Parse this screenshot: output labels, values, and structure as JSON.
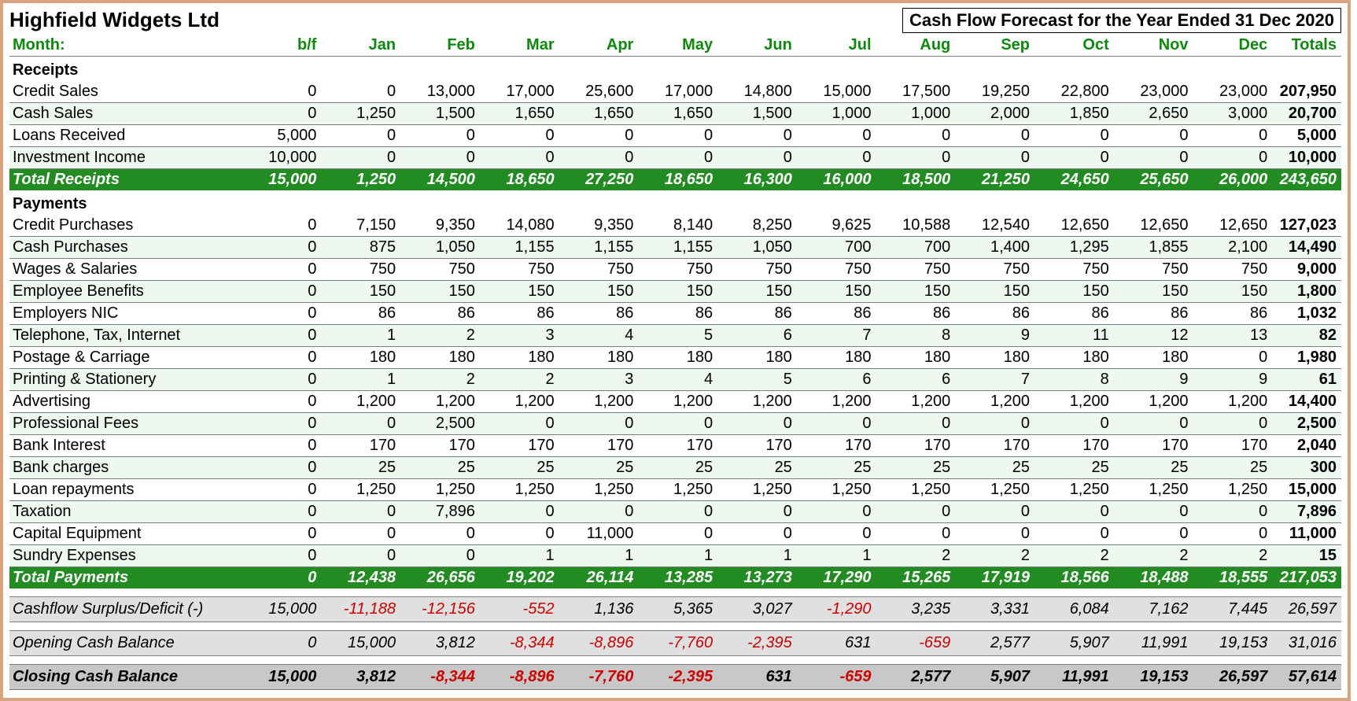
{
  "company": "Highfield Widgets Ltd",
  "title": "Cash Flow Forecast for the Year Ended 31 Dec 2020",
  "month_label": "Month:",
  "columns": [
    "b/f",
    "Jan",
    "Feb",
    "Mar",
    "Apr",
    "May",
    "Jun",
    "Jul",
    "Aug",
    "Sep",
    "Oct",
    "Nov",
    "Dec",
    "Totals"
  ],
  "receipts_header": "Receipts",
  "receipts": [
    {
      "label": "Credit Sales",
      "vals": [
        "0",
        "0",
        "13,000",
        "17,000",
        "25,600",
        "17,000",
        "14,800",
        "15,000",
        "17,500",
        "19,250",
        "22,800",
        "23,000",
        "23,000",
        "207,950"
      ]
    },
    {
      "label": "Cash Sales",
      "vals": [
        "0",
        "1,250",
        "1,500",
        "1,650",
        "1,650",
        "1,650",
        "1,500",
        "1,000",
        "1,000",
        "2,000",
        "1,850",
        "2,650",
        "3,000",
        "20,700"
      ]
    },
    {
      "label": "Loans Received",
      "vals": [
        "5,000",
        "0",
        "0",
        "0",
        "0",
        "0",
        "0",
        "0",
        "0",
        "0",
        "0",
        "0",
        "0",
        "5,000"
      ]
    },
    {
      "label": "Investment Income",
      "vals": [
        "10,000",
        "0",
        "0",
        "0",
        "0",
        "0",
        "0",
        "0",
        "0",
        "0",
        "0",
        "0",
        "0",
        "10,000"
      ]
    }
  ],
  "total_receipts_label": "Total Receipts",
  "total_receipts": [
    "15,000",
    "1,250",
    "14,500",
    "18,650",
    "27,250",
    "18,650",
    "16,300",
    "16,000",
    "18,500",
    "21,250",
    "24,650",
    "25,650",
    "26,000",
    "243,650"
  ],
  "payments_header": "Payments",
  "payments": [
    {
      "label": "Credit Purchases",
      "vals": [
        "0",
        "7,150",
        "9,350",
        "14,080",
        "9,350",
        "8,140",
        "8,250",
        "9,625",
        "10,588",
        "12,540",
        "12,650",
        "12,650",
        "12,650",
        "127,023"
      ]
    },
    {
      "label": "Cash Purchases",
      "vals": [
        "0",
        "875",
        "1,050",
        "1,155",
        "1,155",
        "1,155",
        "1,050",
        "700",
        "700",
        "1,400",
        "1,295",
        "1,855",
        "2,100",
        "14,490"
      ]
    },
    {
      "label": "Wages & Salaries",
      "vals": [
        "0",
        "750",
        "750",
        "750",
        "750",
        "750",
        "750",
        "750",
        "750",
        "750",
        "750",
        "750",
        "750",
        "9,000"
      ]
    },
    {
      "label": "Employee Benefits",
      "vals": [
        "0",
        "150",
        "150",
        "150",
        "150",
        "150",
        "150",
        "150",
        "150",
        "150",
        "150",
        "150",
        "150",
        "1,800"
      ]
    },
    {
      "label": "Employers NIC",
      "vals": [
        "0",
        "86",
        "86",
        "86",
        "86",
        "86",
        "86",
        "86",
        "86",
        "86",
        "86",
        "86",
        "86",
        "1,032"
      ]
    },
    {
      "label": "Telephone, Tax, Internet",
      "vals": [
        "0",
        "1",
        "2",
        "3",
        "4",
        "5",
        "6",
        "7",
        "8",
        "9",
        "11",
        "12",
        "13",
        "82"
      ]
    },
    {
      "label": "Postage & Carriage",
      "vals": [
        "0",
        "180",
        "180",
        "180",
        "180",
        "180",
        "180",
        "180",
        "180",
        "180",
        "180",
        "180",
        "0",
        "1,980"
      ]
    },
    {
      "label": "Printing & Stationery",
      "vals": [
        "0",
        "1",
        "2",
        "2",
        "3",
        "4",
        "5",
        "6",
        "6",
        "7",
        "8",
        "9",
        "9",
        "61"
      ]
    },
    {
      "label": "Advertising",
      "vals": [
        "0",
        "1,200",
        "1,200",
        "1,200",
        "1,200",
        "1,200",
        "1,200",
        "1,200",
        "1,200",
        "1,200",
        "1,200",
        "1,200",
        "1,200",
        "14,400"
      ]
    },
    {
      "label": "Professional Fees",
      "vals": [
        "0",
        "0",
        "2,500",
        "0",
        "0",
        "0",
        "0",
        "0",
        "0",
        "0",
        "0",
        "0",
        "0",
        "2,500"
      ]
    },
    {
      "label": "Bank Interest",
      "vals": [
        "0",
        "170",
        "170",
        "170",
        "170",
        "170",
        "170",
        "170",
        "170",
        "170",
        "170",
        "170",
        "170",
        "2,040"
      ]
    },
    {
      "label": "Bank charges",
      "vals": [
        "0",
        "25",
        "25",
        "25",
        "25",
        "25",
        "25",
        "25",
        "25",
        "25",
        "25",
        "25",
        "25",
        "300"
      ]
    },
    {
      "label": "Loan repayments",
      "vals": [
        "0",
        "1,250",
        "1,250",
        "1,250",
        "1,250",
        "1,250",
        "1,250",
        "1,250",
        "1,250",
        "1,250",
        "1,250",
        "1,250",
        "1,250",
        "15,000"
      ]
    },
    {
      "label": "Taxation",
      "vals": [
        "0",
        "0",
        "7,896",
        "0",
        "0",
        "0",
        "0",
        "0",
        "0",
        "0",
        "0",
        "0",
        "0",
        "7,896"
      ]
    },
    {
      "label": "Capital Equipment",
      "vals": [
        "0",
        "0",
        "0",
        "0",
        "11,000",
        "0",
        "0",
        "0",
        "0",
        "0",
        "0",
        "0",
        "0",
        "11,000"
      ]
    },
    {
      "label": "Sundry Expenses",
      "vals": [
        "0",
        "0",
        "0",
        "1",
        "1",
        "1",
        "1",
        "1",
        "2",
        "2",
        "2",
        "2",
        "2",
        "15"
      ]
    }
  ],
  "total_payments_label": "Total Payments",
  "total_payments": [
    "0",
    "12,438",
    "26,656",
    "19,202",
    "26,114",
    "13,285",
    "13,273",
    "17,290",
    "15,265",
    "17,919",
    "18,566",
    "18,488",
    "18,555",
    "217,053"
  ],
  "surplus_label": "Cashflow Surplus/Deficit (-)",
  "surplus": [
    "15,000",
    "-11,188",
    "-12,156",
    "-552",
    "1,136",
    "5,365",
    "3,027",
    "-1,290",
    "3,235",
    "3,331",
    "6,084",
    "7,162",
    "7,445",
    "26,597"
  ],
  "opening_label": "Opening Cash Balance",
  "opening": [
    "0",
    "15,000",
    "3,812",
    "-8,344",
    "-8,896",
    "-7,760",
    "-2,395",
    "631",
    "-659",
    "2,577",
    "5,907",
    "11,991",
    "19,153",
    "31,016"
  ],
  "closing_label": "Closing Cash Balance",
  "closing": [
    "15,000",
    "3,812",
    "-8,344",
    "-8,896",
    "-7,760",
    "-2,395",
    "631",
    "-659",
    "2,577",
    "5,907",
    "11,991",
    "19,153",
    "26,597",
    "57,614"
  ]
}
